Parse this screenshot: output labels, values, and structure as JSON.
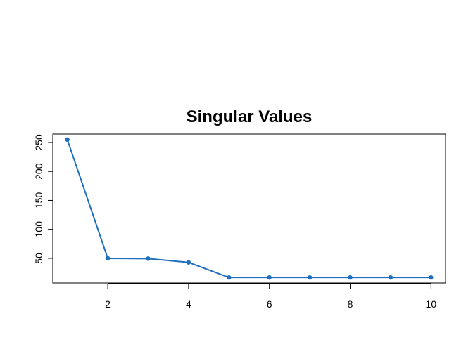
{
  "chart_data": {
    "type": "line",
    "title": "Singular Values",
    "xlabel": "",
    "ylabel": "",
    "x": [
      1,
      2,
      3,
      4,
      5,
      6,
      7,
      8,
      9,
      10
    ],
    "series": [
      {
        "values": [
          255,
          50,
          49.5,
          43,
          17,
          17,
          17,
          17,
          17,
          17
        ]
      }
    ],
    "xlim": [
      0.64,
      10.36
    ],
    "ylim": [
      7.5,
      264.5
    ],
    "x_ticks": [
      2,
      4,
      6,
      8,
      10
    ],
    "y_ticks": [
      50,
      100,
      150,
      200,
      250
    ],
    "line_color": "#1f6fc0",
    "marker": "filled-circle",
    "grid": false,
    "legend": "none"
  }
}
